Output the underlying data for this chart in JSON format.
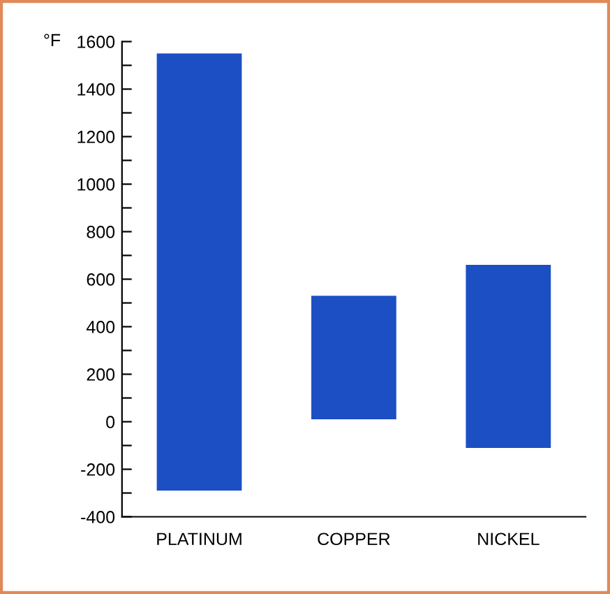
{
  "chart_data": {
    "type": "bar",
    "ylabel": "°F",
    "categories": [
      "PLATINUM",
      "COPPER",
      "NICKEL"
    ],
    "base": [
      -290,
      10,
      -110
    ],
    "values": [
      1840,
      520,
      770
    ],
    "color": "#1d4fc4",
    "ylim": [
      -400,
      1600
    ],
    "yticks": [
      -400,
      {
        "value": -300,
        "label": null
      },
      -200,
      {
        "value": -100,
        "label": null
      },
      0,
      {
        "value": 100,
        "label": null
      },
      200,
      {
        "value": 300,
        "label": null
      },
      400,
      {
        "value": 500,
        "label": null
      },
      600,
      {
        "value": 700,
        "label": null
      },
      800,
      {
        "value": 900,
        "label": null
      },
      1000,
      {
        "value": 1100,
        "label": null
      },
      1200,
      {
        "value": 1300,
        "label": null
      },
      1400,
      {
        "value": 1500,
        "label": null
      },
      1600
    ],
    "grid": false
  }
}
